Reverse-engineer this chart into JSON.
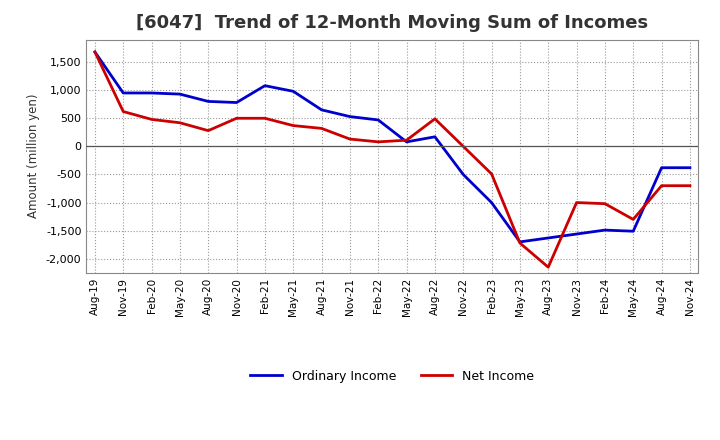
{
  "title": "[6047]  Trend of 12-Month Moving Sum of Incomes",
  "ylabel": "Amount (million yen)",
  "x_labels": [
    "Aug-19",
    "Nov-19",
    "Feb-20",
    "May-20",
    "Aug-20",
    "Nov-20",
    "Feb-21",
    "May-21",
    "Aug-21",
    "Nov-21",
    "Feb-22",
    "May-22",
    "Aug-22",
    "Nov-22",
    "Feb-23",
    "May-23",
    "Aug-23",
    "Nov-23",
    "Feb-24",
    "May-24",
    "Aug-24",
    "Nov-24"
  ],
  "ordinary_income": [
    1680,
    950,
    950,
    930,
    800,
    780,
    1080,
    980,
    650,
    530,
    470,
    80,
    170,
    -500,
    -1000,
    -1700,
    -1630,
    -1560,
    -1490,
    -1510,
    -380,
    -380
  ],
  "net_income": [
    1680,
    620,
    480,
    420,
    280,
    500,
    500,
    370,
    320,
    130,
    80,
    110,
    490,
    0,
    -490,
    -1720,
    -2150,
    -1000,
    -1020,
    -1300,
    -700,
    -700
  ],
  "ordinary_income_color": "#0000cc",
  "net_income_color": "#cc0000",
  "ylim": [
    -2250,
    1900
  ],
  "yticks": [
    -2000,
    -1500,
    -1000,
    -500,
    0,
    500,
    1000,
    1500
  ],
  "background_color": "#ffffff",
  "grid_color": "#999999",
  "title_fontsize": 13,
  "legend_labels": [
    "Ordinary Income",
    "Net Income"
  ]
}
